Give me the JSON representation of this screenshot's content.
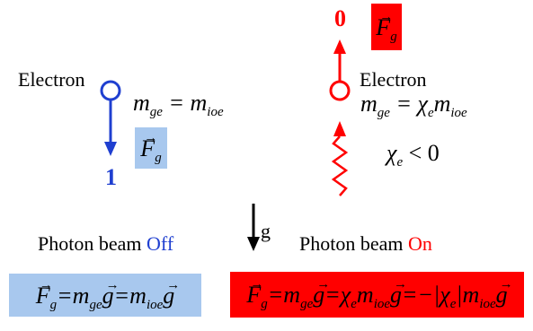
{
  "left": {
    "electron_label": "Electron",
    "mass_relation": "m_ge = m_ioe",
    "force_label": "F_g",
    "direction_value": "1",
    "photon_beam_text": "Photon beam",
    "photon_beam_state": "Off",
    "equation": "F_g = m_ge g = m_ioe g"
  },
  "right": {
    "electron_label": "Electron",
    "mass_relation": "m_ge = χ_e m_ioe",
    "chi_condition": "χ_e < 0",
    "force_label": "F_g",
    "direction_value": "0",
    "photon_beam_text": "Photon beam",
    "photon_beam_state": "On",
    "equation": "F_g = m_ge g = χ_e m_ioe g = −|χ_e| m_ioe g"
  },
  "center": {
    "gravity_label": "g"
  },
  "colors": {
    "blue": "#1f3fd0",
    "light_blue": "#a8c8ee",
    "red": "#ff0000"
  }
}
